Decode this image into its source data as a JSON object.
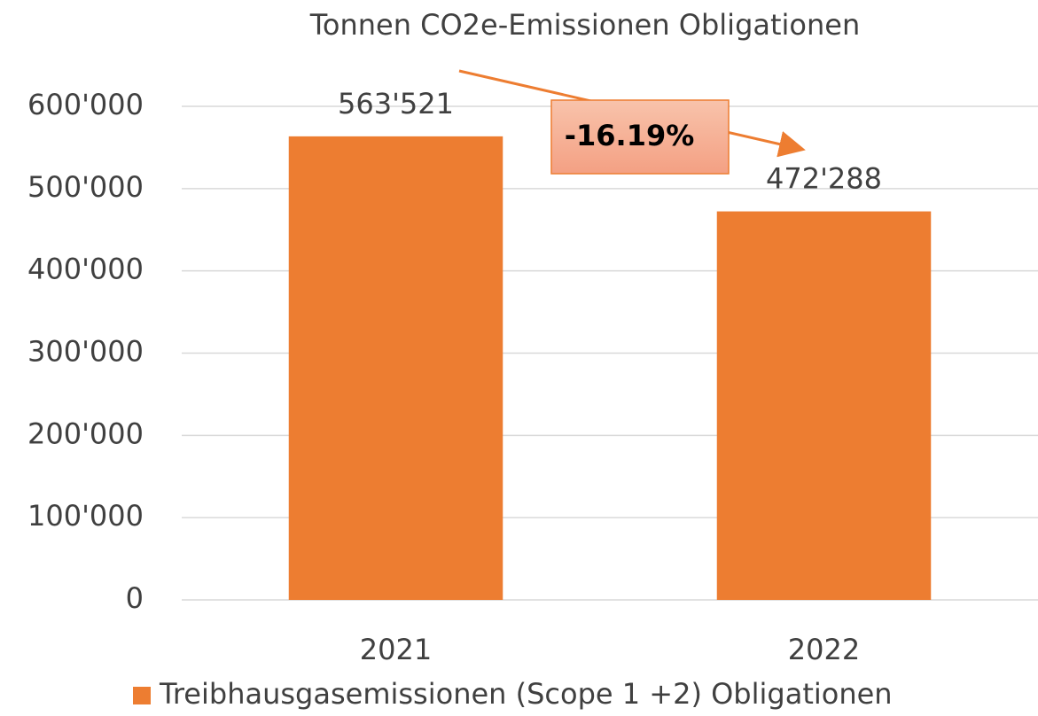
{
  "chart_data": {
    "type": "bar",
    "title": "Tonnen CO2e-Emissionen Obligationen",
    "categories": [
      "2021",
      "2022"
    ],
    "series": [
      {
        "name": "Treibhausgasemissionen (Scope 1 +2) Obligationen",
        "color": "#ed7d31",
        "values": [
          563521,
          472288
        ],
        "value_labels": [
          "563'521",
          "472'288"
        ]
      }
    ],
    "ylim": [
      0,
      600000
    ],
    "yticks": [
      0,
      {
        "value": 100000,
        "label": "100'000"
      },
      {
        "value": 200000,
        "label": "200'000"
      },
      {
        "value": 300000,
        "label": "300'000"
      },
      {
        "value": 400000,
        "label": "400'000"
      },
      {
        "value": 500000,
        "label": "500'000"
      },
      {
        "value": 600000,
        "label": "600'000"
      }
    ],
    "grid": true,
    "legend": "bottom",
    "annotations": [
      "-16.19%"
    ]
  }
}
